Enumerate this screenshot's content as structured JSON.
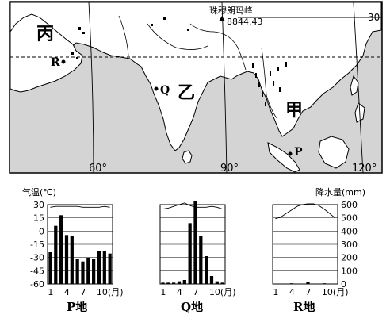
{
  "map": {
    "region_labels": [
      "丙",
      "乙",
      "甲"
    ],
    "peak": {
      "name": "珠穆朗玛峰",
      "elevation": "8844.43"
    },
    "points": [
      "R",
      "Q",
      "P"
    ],
    "longitudes": [
      "60°",
      "90°",
      "120°"
    ],
    "latitude": "30",
    "colors": {
      "sea": "#d4d4d4",
      "land": "#ffffff"
    }
  },
  "charts_common": {
    "temp_axis_title": "气温(℃)",
    "precip_axis_title": "降水量(mm)",
    "temp_ticks": [
      30,
      15,
      0,
      -15,
      -30,
      -45,
      -60
    ],
    "precip_ticks": [
      600,
      500,
      400,
      300,
      200,
      100,
      0
    ],
    "x_ticks": [
      "1",
      "4",
      "7",
      "10(月)"
    ]
  },
  "chart_data": [
    {
      "type": "bar",
      "title": "P地",
      "categories": [
        1,
        2,
        3,
        4,
        5,
        6,
        7,
        8,
        9,
        10,
        11,
        12
      ],
      "precipitation_mm": [
        240,
        440,
        520,
        370,
        360,
        190,
        170,
        200,
        190,
        250,
        250,
        230
      ],
      "temperature_c": [
        27,
        28,
        28,
        28,
        28,
        28,
        27,
        27,
        27,
        27,
        28,
        27
      ],
      "temp_ylim": [
        -60,
        30
      ],
      "precip_ylim": [
        0,
        600
      ]
    },
    {
      "type": "bar",
      "title": "Q地",
      "categories": [
        1,
        2,
        3,
        4,
        5,
        6,
        7,
        8,
        9,
        10,
        11,
        12
      ],
      "precipitation_mm": [
        10,
        10,
        10,
        20,
        30,
        460,
        630,
        360,
        210,
        60,
        20,
        10
      ],
      "temperature_c": [
        25,
        26,
        28,
        30,
        32,
        29,
        27,
        27,
        27,
        28,
        27,
        25
      ],
      "temp_ylim": [
        -60,
        30
      ],
      "precip_ylim": [
        0,
        600
      ]
    },
    {
      "type": "bar",
      "title": "R地",
      "categories": [
        1,
        2,
        3,
        4,
        5,
        6,
        7,
        8,
        9,
        10,
        11,
        12
      ],
      "precipitation_mm": [
        0,
        0,
        0,
        5,
        0,
        0,
        15,
        0,
        0,
        5,
        0,
        0
      ],
      "temperature_c": [
        14,
        16,
        20,
        24,
        28,
        30,
        31,
        31,
        29,
        25,
        20,
        15
      ],
      "temp_ylim": [
        -60,
        30
      ],
      "precip_ylim": [
        0,
        600
      ]
    }
  ]
}
